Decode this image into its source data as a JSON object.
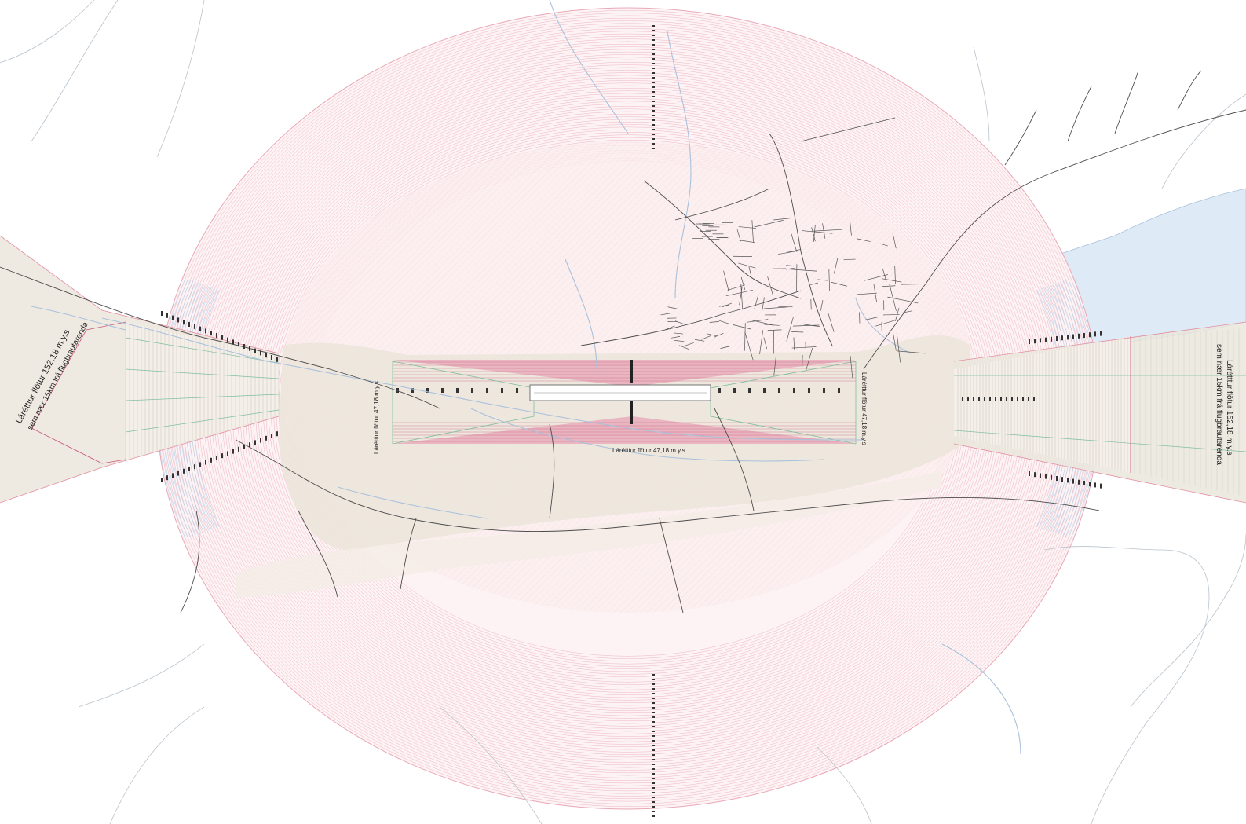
{
  "labels": {
    "horizontal_surface_runway": "Lárétttur flötur 47,18 m.y.s",
    "horizontal_surface_west_end": "Lárétttur flötur 47,18 m.y.s",
    "horizontal_surface_east_end": "Lárétttur flötur 47,18 m.y.s",
    "outer_west_line1": "Lárétttur flötur 152,18 m.y.s",
    "outer_west_line2": "sem nær 15km frá flugbrautarenda",
    "outer_east_line1": "Lárétttur flötur 152,18 m.y.s",
    "outer_east_line2": "sem nær 15km frá flugbrautarenda"
  },
  "colors": {
    "conical_hatch": "#e8a8b6",
    "transition_hatch": "#b9d3ea",
    "approach_fill": "#ece6dc",
    "inner_fill": "#fbeeee",
    "runway_strip": "#c8567a",
    "road": "#4d4d4d",
    "river": "#a9c1dc",
    "lake": "#deebf6",
    "slope_line": "#7fbf9c"
  }
}
